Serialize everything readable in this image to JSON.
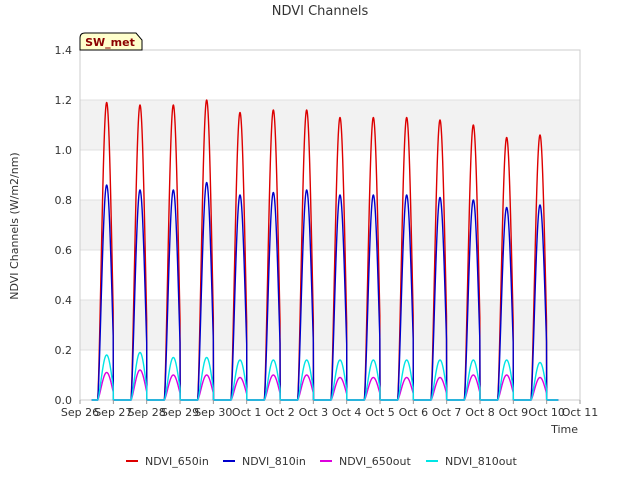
{
  "chart_data": {
    "type": "line",
    "title": "NDVI Channels",
    "xlabel": "Time",
    "ylabel": "NDVI Channels (W/m2/nm)",
    "ylim": [
      0.0,
      1.4
    ],
    "yticks": [
      "0.0",
      "0.2",
      "0.4",
      "0.6",
      "0.8",
      "1.0",
      "1.2",
      "1.4"
    ],
    "xlim_days": [
      0,
      15
    ],
    "xticks": [
      "Sep 26",
      "Sep 27",
      "Sep 28",
      "Sep 29",
      "Sep 30",
      "Oct 1",
      "Oct 2",
      "Oct 3",
      "Oct 4",
      "Oct 5",
      "Oct 6",
      "Oct 7",
      "Oct 8",
      "Oct 9",
      "Oct 10",
      "Oct 11"
    ],
    "badge": "SW_met",
    "legend_position": "bottom",
    "grid": "horizontal bands",
    "data_start_day": 0.35,
    "data_end_day": 14.35,
    "day_peak_offset": 0.8,
    "day_half_width": 0.27,
    "series": [
      {
        "name": "NDVI_650in",
        "color": "#dd0000",
        "peaks": [
          1.19,
          1.18,
          1.18,
          1.2,
          1.15,
          1.16,
          1.16,
          1.13,
          1.13,
          1.13,
          1.12,
          1.1,
          1.05,
          1.06
        ]
      },
      {
        "name": "NDVI_810in",
        "color": "#0000cc",
        "peaks": [
          0.86,
          0.84,
          0.84,
          0.87,
          0.82,
          0.83,
          0.84,
          0.82,
          0.82,
          0.82,
          0.81,
          0.8,
          0.77,
          0.78
        ]
      },
      {
        "name": "NDVI_650out",
        "color": "#dd00dd",
        "peaks": [
          0.11,
          0.12,
          0.1,
          0.1,
          0.09,
          0.1,
          0.1,
          0.09,
          0.09,
          0.09,
          0.09,
          0.1,
          0.1,
          0.09
        ]
      },
      {
        "name": "NDVI_810out",
        "color": "#00e5e5",
        "peaks": [
          0.18,
          0.19,
          0.17,
          0.17,
          0.16,
          0.16,
          0.16,
          0.16,
          0.16,
          0.16,
          0.16,
          0.16,
          0.16,
          0.15
        ]
      }
    ]
  }
}
